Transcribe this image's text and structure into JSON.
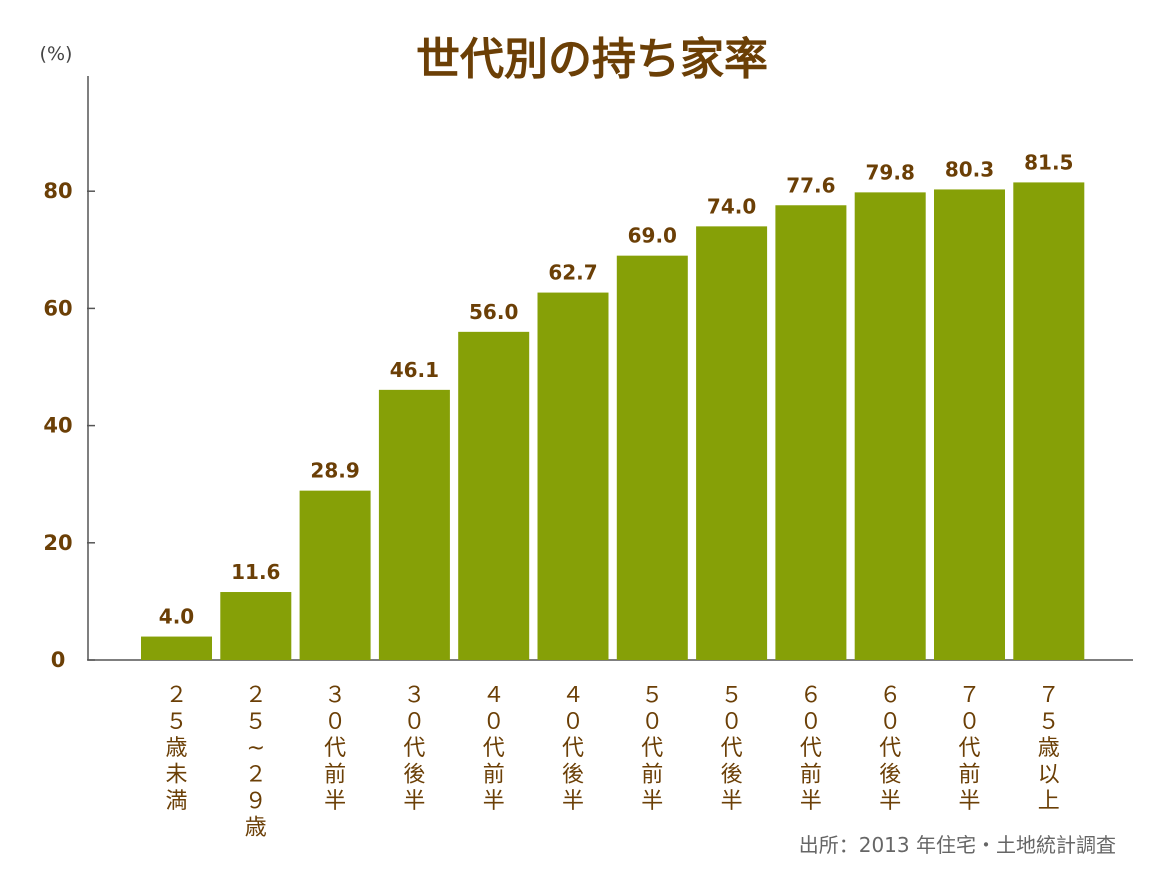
{
  "chart_data": {
    "type": "bar",
    "title": "世代別の持ち家率",
    "y_unit": "(%)",
    "ylim": [
      0,
      90
    ],
    "yticks": [
      0,
      20,
      40,
      60,
      80
    ],
    "grid": false,
    "categories": [
      "２５歳未満",
      "２５~２９歳",
      "３０代前半",
      "３０代後半",
      "４０代前半",
      "４０代後半",
      "５０代前半",
      "５０代後半",
      "６０代前半",
      "６０代後半",
      "７０代前半",
      "７５歳以上"
    ],
    "values": [
      4.0,
      11.6,
      28.9,
      46.1,
      56.0,
      62.7,
      69.0,
      74.0,
      77.6,
      79.8,
      80.3,
      81.5
    ],
    "value_labels": [
      "4.0",
      "11.6",
      "28.9",
      "46.1",
      "56.0",
      "62.7",
      "69.0",
      "74.0",
      "77.6",
      "79.8",
      "80.3",
      "81.5"
    ],
    "source": "出所：2013 年住宅・土地統計調査"
  },
  "colors": {
    "bar": "#86a007",
    "title": "#6b3f06",
    "label": "#6b3f06",
    "axis": "#555555",
    "source": "#666666"
  }
}
